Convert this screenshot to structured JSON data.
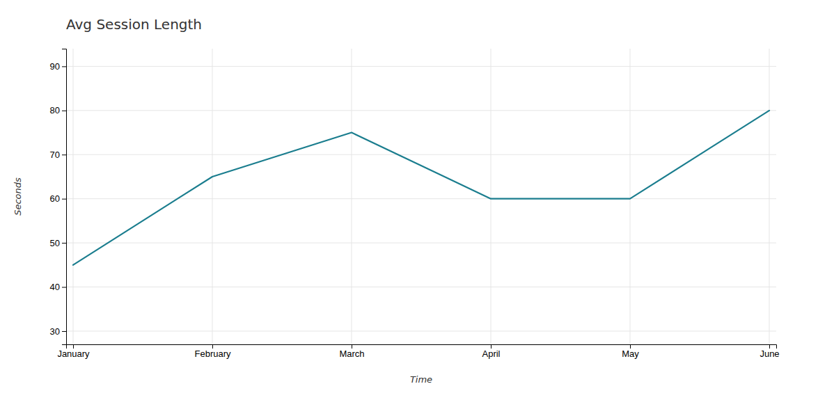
{
  "chart_data": {
    "type": "line",
    "title": "Avg Session Length",
    "xlabel": "Time",
    "ylabel": "Seconds",
    "categories": [
      "January",
      "February",
      "March",
      "April",
      "May",
      "June"
    ],
    "values": [
      45,
      65,
      75,
      60,
      60,
      80
    ],
    "color": "#1a7d8e",
    "ylim": [
      27,
      94
    ],
    "yticks": [
      30,
      40,
      50,
      60,
      70,
      80,
      90
    ],
    "grid": true
  }
}
